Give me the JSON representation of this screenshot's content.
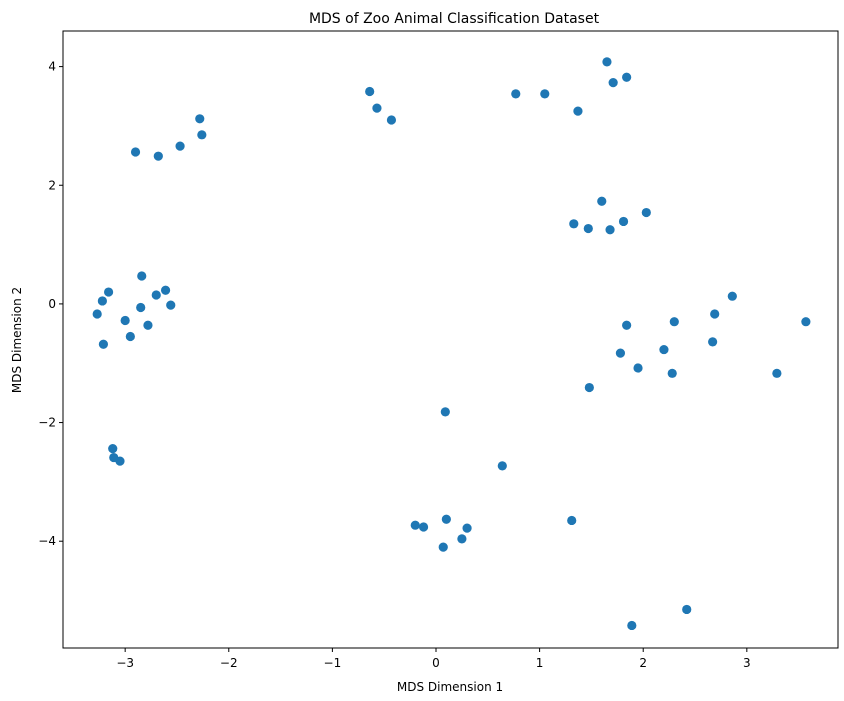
{
  "chart_data": {
    "type": "scatter",
    "title": "MDS of Zoo Animal Classification Dataset",
    "xlabel": "MDS Dimension 1",
    "ylabel": "MDS Dimension 2",
    "xlim": [
      -3.6,
      3.88
    ],
    "ylim": [
      -5.8,
      4.6
    ],
    "xticks": [
      -3,
      -2,
      -1,
      0,
      1,
      2,
      3
    ],
    "yticks": [
      -4,
      -2,
      0,
      2,
      4
    ],
    "xtick_labels": [
      "−3",
      "−2",
      "−1",
      "0",
      "1",
      "2",
      "3"
    ],
    "ytick_labels": [
      "−4",
      "−2",
      "0",
      "2",
      "4"
    ],
    "grid": false,
    "marker_color": "#1f77b4",
    "x": [
      -2.9,
      -2.68,
      -2.47,
      -2.28,
      -2.26,
      -0.64,
      -0.57,
      -0.43,
      0.77,
      1.05,
      1.37,
      1.65,
      1.71,
      1.84,
      1.33,
      1.47,
      1.6,
      1.68,
      1.81,
      2.03,
      -3.27,
      -3.22,
      -3.16,
      -2.84,
      -2.7,
      -2.61,
      -3.0,
      -2.85,
      -2.56,
      -2.95,
      -2.78,
      -3.21,
      1.84,
      2.3,
      2.69,
      2.86,
      3.57,
      1.78,
      2.2,
      2.67,
      1.95,
      2.28,
      1.48,
      3.29,
      -3.12,
      -3.11,
      -3.05,
      0.09,
      0.64,
      -0.2,
      -0.12,
      0.1,
      0.3,
      0.25,
      0.07,
      1.31,
      2.42,
      1.89
    ],
    "y": [
      2.56,
      2.49,
      2.66,
      3.12,
      2.85,
      3.58,
      3.3,
      3.1,
      3.54,
      3.54,
      3.25,
      4.08,
      3.73,
      3.82,
      1.35,
      1.27,
      1.73,
      1.25,
      1.39,
      1.54,
      -0.17,
      0.05,
      0.2,
      0.47,
      0.15,
      0.23,
      -0.28,
      -0.06,
      -0.02,
      -0.55,
      -0.36,
      -0.68,
      -0.36,
      -0.3,
      -0.17,
      0.13,
      -0.3,
      -0.83,
      -0.77,
      -0.64,
      -1.08,
      -1.17,
      -1.41,
      -1.17,
      -2.44,
      -2.59,
      -2.65,
      -1.82,
      -2.73,
      -3.73,
      -3.76,
      -3.63,
      -3.78,
      -3.96,
      -4.1,
      -3.65,
      -5.15,
      -5.42
    ]
  }
}
